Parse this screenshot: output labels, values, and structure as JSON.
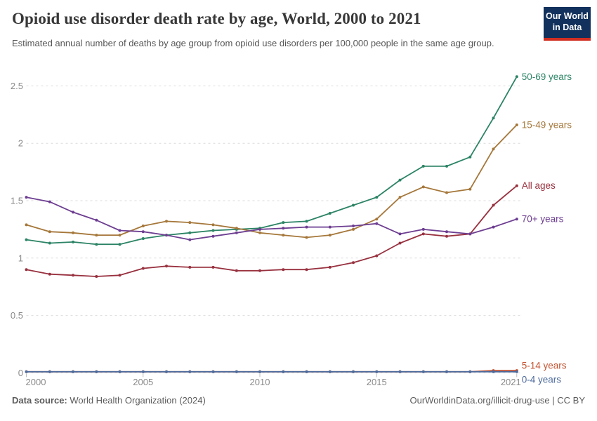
{
  "header": {
    "title": "Opioid use disorder death rate by age, World, 2000 to 2021",
    "subtitle": "Estimated annual number of deaths by age group from opioid use disorders per 100,000 people in the same age group.",
    "logo": {
      "line1": "Our World",
      "line2": "in Data",
      "bg_color": "#12315c",
      "accent_color": "#d12e21"
    }
  },
  "footer": {
    "source_label": "Data source:",
    "source_text": " World Health Organization (2024)",
    "credit": "OurWorldinData.org/illicit-drug-use | CC BY"
  },
  "chart_data": {
    "type": "line",
    "title": "Opioid use disorder death rate by age, World, 2000 to 2021",
    "xlabel": "",
    "ylabel": "",
    "grid": true,
    "legend_position": "end-of-line labels",
    "xlim": [
      2000,
      2021
    ],
    "ylim": [
      0,
      2.6
    ],
    "x": [
      2000,
      2001,
      2002,
      2003,
      2004,
      2005,
      2006,
      2007,
      2008,
      2009,
      2010,
      2011,
      2012,
      2013,
      2014,
      2015,
      2016,
      2017,
      2018,
      2019,
      2020,
      2021
    ],
    "x_ticks": [
      2000,
      2005,
      2010,
      2015,
      2021
    ],
    "y_ticks": [
      0,
      0.5,
      1,
      1.5,
      2,
      2.5
    ],
    "series": [
      {
        "name": "50-69 years",
        "color": "#2c8465",
        "values": [
          1.16,
          1.13,
          1.14,
          1.12,
          1.12,
          1.17,
          1.2,
          1.22,
          1.24,
          1.25,
          1.26,
          1.31,
          1.32,
          1.39,
          1.46,
          1.53,
          1.68,
          1.8,
          1.8,
          1.88,
          2.22,
          2.58
        ]
      },
      {
        "name": "15-49 years",
        "color": "#a5773a",
        "values": [
          1.29,
          1.23,
          1.22,
          1.2,
          1.2,
          1.28,
          1.32,
          1.31,
          1.29,
          1.26,
          1.22,
          1.2,
          1.18,
          1.2,
          1.25,
          1.34,
          1.53,
          1.62,
          1.57,
          1.6,
          1.95,
          2.16
        ]
      },
      {
        "name": "All ages",
        "color": "#98313f",
        "values": [
          0.9,
          0.86,
          0.85,
          0.84,
          0.85,
          0.91,
          0.93,
          0.92,
          0.92,
          0.89,
          0.89,
          0.9,
          0.9,
          0.92,
          0.96,
          1.02,
          1.13,
          1.21,
          1.19,
          1.21,
          1.46,
          1.63
        ]
      },
      {
        "name": "70+ years",
        "color": "#6d3e91",
        "values": [
          1.53,
          1.49,
          1.4,
          1.33,
          1.24,
          1.23,
          1.2,
          1.16,
          1.19,
          1.22,
          1.25,
          1.26,
          1.27,
          1.27,
          1.28,
          1.3,
          1.21,
          1.25,
          1.23,
          1.21,
          1.27,
          1.34
        ]
      },
      {
        "name": "5-14 years",
        "color": "#c4512f",
        "values": [
          0.01,
          0.01,
          0.01,
          0.01,
          0.01,
          0.01,
          0.01,
          0.01,
          0.01,
          0.01,
          0.01,
          0.01,
          0.01,
          0.01,
          0.01,
          0.01,
          0.01,
          0.01,
          0.01,
          0.01,
          0.02,
          0.02
        ]
      },
      {
        "name": "0-4 years",
        "color": "#4c6a9c",
        "values": [
          0.01,
          0.01,
          0.01,
          0.01,
          0.01,
          0.01,
          0.01,
          0.01,
          0.01,
          0.01,
          0.01,
          0.01,
          0.01,
          0.01,
          0.01,
          0.01,
          0.01,
          0.01,
          0.01,
          0.01,
          0.01,
          0.01
        ]
      }
    ]
  }
}
